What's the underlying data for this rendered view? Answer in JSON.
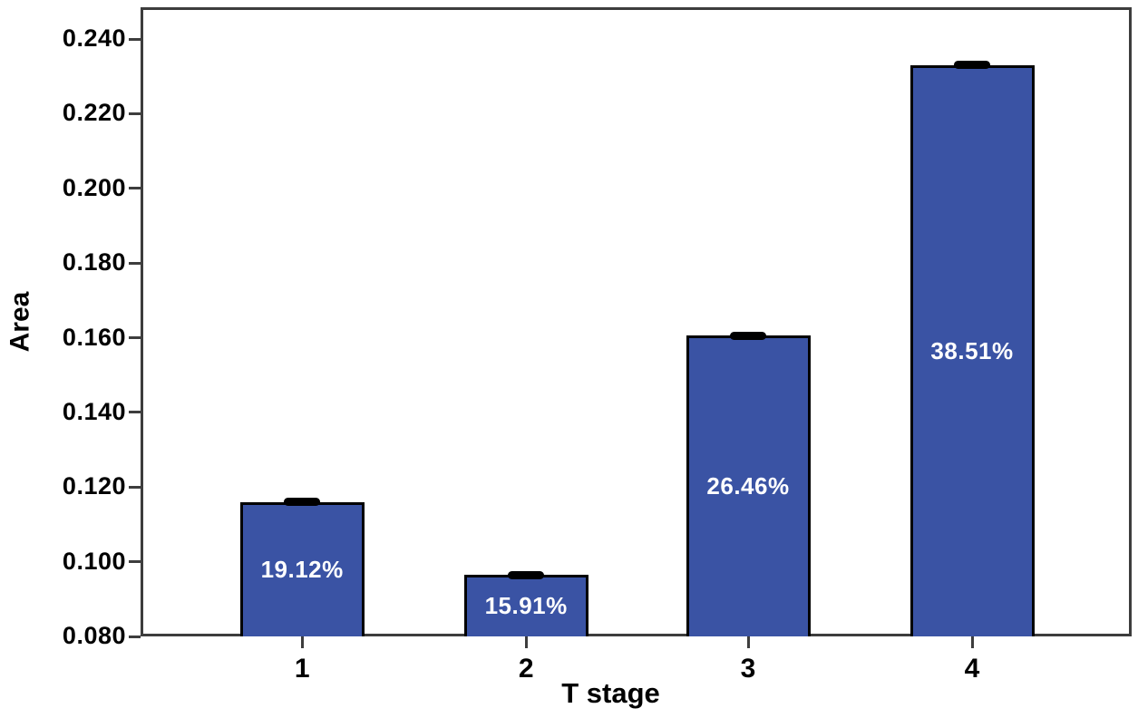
{
  "chart_data": {
    "type": "bar",
    "title": "",
    "xlabel": "T stage",
    "ylabel": "Area",
    "categories": [
      "1",
      "2",
      "3",
      "4"
    ],
    "values": [
      0.116,
      0.0965,
      0.1605,
      0.233
    ],
    "bar_labels": [
      "19.12%",
      "15.91%",
      "26.46%",
      "38.51%"
    ],
    "error_bars": {
      "visible": true,
      "approx_half_width": 0.001
    },
    "ylim": [
      0.08,
      0.2485
    ],
    "yticks": [
      0.08,
      0.1,
      0.12,
      0.14,
      0.16,
      0.18,
      0.2,
      0.22,
      0.24
    ],
    "ytick_labels": [
      "0.080",
      "0.100",
      "0.120",
      "0.140",
      "0.160",
      "0.180",
      "0.200",
      "0.220",
      "0.240"
    ],
    "grid": false,
    "legend": "none",
    "colors": {
      "bar_fill": "#3a53a4",
      "bar_border": "#000000",
      "error_bar": "#000000",
      "bar_label_text": "#ffffff",
      "axis_frame": "#3d3d3d",
      "axis_text": "#000000",
      "background": "#ffffff"
    }
  }
}
